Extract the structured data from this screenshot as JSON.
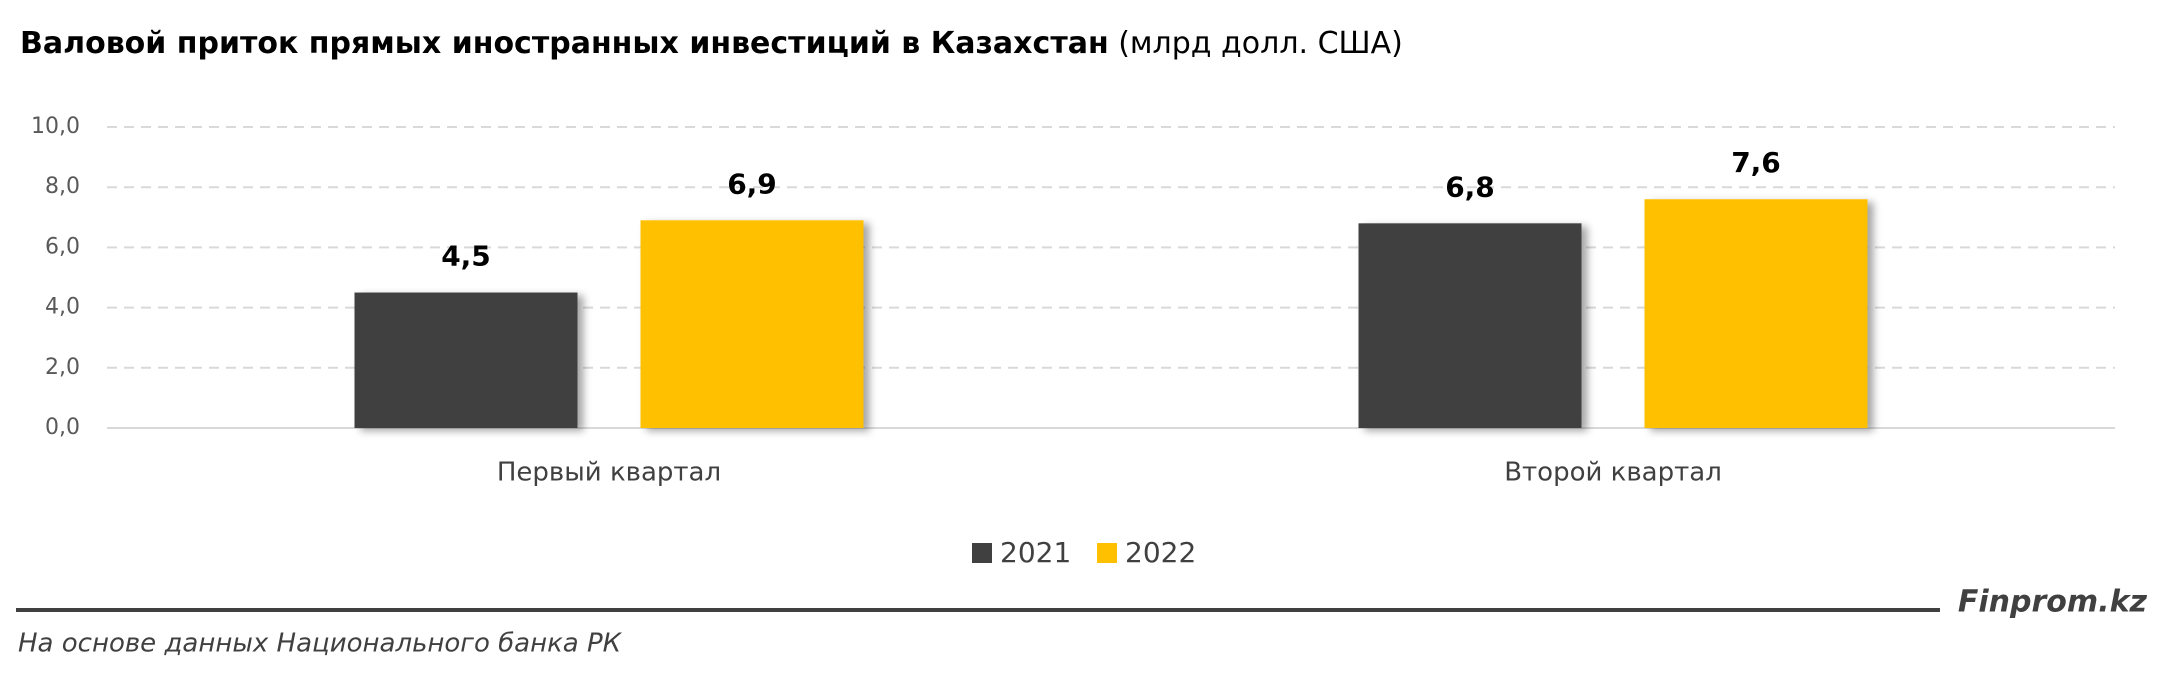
{
  "chart_data": {
    "type": "bar",
    "title": "Валовой приток прямых иностранных инвестиций в Казахстан",
    "title_unit": "(млрд долл. США)",
    "categories": [
      "Первый квартал",
      "Второй квартал"
    ],
    "series": [
      {
        "name": "2021",
        "color": "#404040",
        "values": [
          4.5,
          6.8
        ],
        "value_labels": [
          "4,5",
          "6,8"
        ]
      },
      {
        "name": "2022",
        "color": "#ffc000",
        "values": [
          6.9,
          7.6
        ],
        "value_labels": [
          "6,9",
          "7,6"
        ]
      }
    ],
    "ylim": [
      0,
      10
    ],
    "yticks": [
      {
        "value": 0,
        "label": "0,0"
      },
      {
        "value": 2,
        "label": "2,0"
      },
      {
        "value": 4,
        "label": "4,0"
      },
      {
        "value": 6,
        "label": "6,0"
      },
      {
        "value": 8,
        "label": "8,0"
      },
      {
        "value": 10,
        "label": "10,0"
      }
    ],
    "grid": true,
    "legend": "bottom",
    "source": "На основе данных Национального банка РК",
    "brand": "Finprom.kz"
  }
}
